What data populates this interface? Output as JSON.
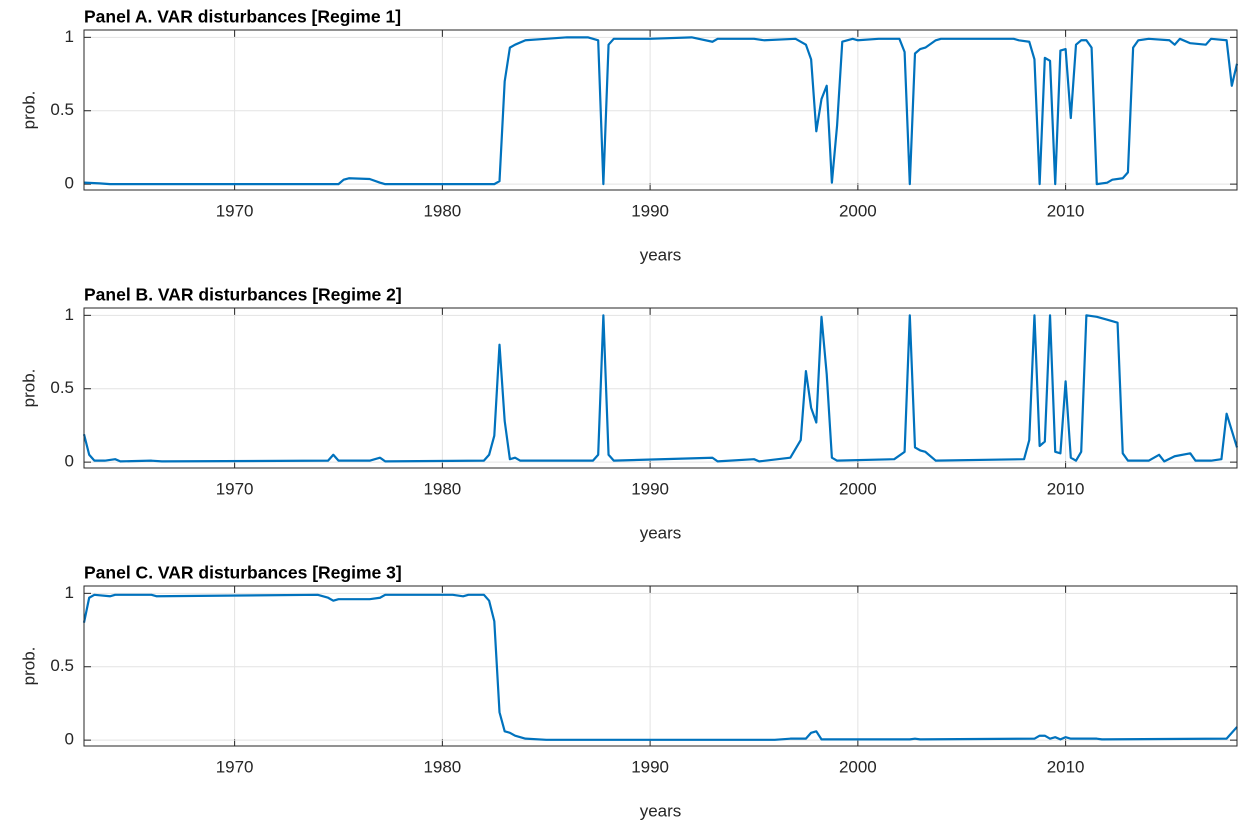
{
  "chart_data": [
    {
      "type": "line",
      "title": "Panel A. VAR disturbances [Regime 1]",
      "xlabel": "years",
      "ylabel": "prob.",
      "xlim": [
        1962.75,
        2018.25
      ],
      "ylim": [
        -0.04,
        1.05
      ],
      "xticks": [
        1970,
        1980,
        1990,
        2000,
        2010
      ],
      "yticks": [
        0,
        0.5,
        1
      ],
      "grid": true,
      "color": "#0072bd",
      "x": [
        1962.75,
        1963.5,
        1964,
        1975,
        1975.25,
        1975.5,
        1976.5,
        1977,
        1977.25,
        1982.5,
        1982.75,
        1983,
        1983.25,
        1983.5,
        1984,
        1985,
        1986,
        1987,
        1987.5,
        1987.75,
        1988,
        1988.25,
        1990,
        1992,
        1993,
        1993.25,
        1995,
        1995.5,
        1997,
        1997.5,
        1997.75,
        1998,
        1998.25,
        1998.5,
        1998.75,
        1999,
        1999.25,
        1999.75,
        2000,
        2001,
        2002,
        2002.25,
        2002.5,
        2002.75,
        2003,
        2003.25,
        2003.75,
        2004,
        2007.5,
        2007.75,
        2008.25,
        2008.5,
        2008.75,
        2009,
        2009.25,
        2009.5,
        2009.75,
        2010,
        2010.25,
        2010.5,
        2010.75,
        2011,
        2011.25,
        2011.5,
        2012,
        2012.25,
        2012.75,
        2013,
        2013.25,
        2013.5,
        2014,
        2015,
        2015.25,
        2015.5,
        2016,
        2016.75,
        2017,
        2017.75,
        2018,
        2018.25
      ],
      "values": [
        0.01,
        0.005,
        0,
        0,
        0.03,
        0.04,
        0.035,
        0.01,
        0,
        0,
        0.02,
        0.7,
        0.93,
        0.95,
        0.98,
        0.99,
        1,
        1,
        0.98,
        0,
        0.95,
        0.99,
        0.99,
        1,
        0.97,
        0.99,
        0.99,
        0.98,
        0.99,
        0.95,
        0.85,
        0.36,
        0.58,
        0.67,
        0.01,
        0.4,
        0.97,
        0.99,
        0.98,
        0.99,
        0.99,
        0.9,
        0,
        0.89,
        0.92,
        0.93,
        0.98,
        0.99,
        0.99,
        0.98,
        0.97,
        0.85,
        0,
        0.86,
        0.84,
        0,
        0.91,
        0.92,
        0.45,
        0.95,
        0.98,
        0.98,
        0.93,
        0,
        0.01,
        0.03,
        0.04,
        0.08,
        0.93,
        0.98,
        0.99,
        0.98,
        0.95,
        0.99,
        0.96,
        0.95,
        0.99,
        0.98,
        0.67,
        0.82
      ]
    },
    {
      "type": "line",
      "title": "Panel B. VAR disturbances [Regime 2]",
      "xlabel": "years",
      "ylabel": "prob.",
      "xlim": [
        1962.75,
        2018.25
      ],
      "ylim": [
        -0.04,
        1.05
      ],
      "xticks": [
        1970,
        1980,
        1990,
        2000,
        2010
      ],
      "yticks": [
        0,
        0.5,
        1
      ],
      "grid": true,
      "color": "#0072bd",
      "x": [
        1962.75,
        1963,
        1963.25,
        1963.75,
        1964.25,
        1964.5,
        1966,
        1966.5,
        1974.5,
        1974.75,
        1975,
        1976.5,
        1977,
        1977.25,
        1982,
        1982.25,
        1982.5,
        1982.75,
        1983,
        1983.25,
        1983.5,
        1983.75,
        1987.25,
        1987.5,
        1987.75,
        1988,
        1988.25,
        1993,
        1993.25,
        1995,
        1995.25,
        1996.75,
        1997.25,
        1997.5,
        1997.75,
        1998,
        1998.25,
        1998.5,
        1998.75,
        1999,
        2001.75,
        2002.25,
        2002.5,
        2002.75,
        2003,
        2003.25,
        2003.75,
        2008,
        2008.25,
        2008.5,
        2008.75,
        2009,
        2009.25,
        2009.5,
        2009.75,
        2010,
        2010.25,
        2010.5,
        2010.75,
        2011,
        2011.5,
        2012,
        2012.5,
        2012.75,
        2013,
        2014,
        2014.5,
        2014.75,
        2015.25,
        2016,
        2016.25,
        2017,
        2017.5,
        2017.75,
        2018.25
      ],
      "values": [
        0.19,
        0.05,
        0.01,
        0.01,
        0.02,
        0.005,
        0.01,
        0.005,
        0.01,
        0.05,
        0.01,
        0.01,
        0.03,
        0.005,
        0.01,
        0.05,
        0.18,
        0.8,
        0.28,
        0.02,
        0.03,
        0.01,
        0.01,
        0.05,
        1,
        0.05,
        0.01,
        0.03,
        0.005,
        0.02,
        0.005,
        0.03,
        0.15,
        0.62,
        0.37,
        0.27,
        0.99,
        0.6,
        0.03,
        0.01,
        0.02,
        0.07,
        1,
        0.1,
        0.08,
        0.07,
        0.01,
        0.02,
        0.15,
        1,
        0.11,
        0.14,
        1,
        0.07,
        0.06,
        0.55,
        0.03,
        0.01,
        0.07,
        1,
        0.99,
        0.97,
        0.95,
        0.06,
        0.01,
        0.01,
        0.05,
        0.005,
        0.04,
        0.06,
        0.01,
        0.01,
        0.02,
        0.33,
        0.1
      ]
    },
    {
      "type": "line",
      "title": "Panel C. VAR disturbances [Regime 3]",
      "xlabel": "years",
      "ylabel": "prob.",
      "xlim": [
        1962.75,
        2018.25
      ],
      "ylim": [
        -0.04,
        1.05
      ],
      "xticks": [
        1970,
        1980,
        1990,
        2000,
        2010
      ],
      "yticks": [
        0,
        0.5,
        1
      ],
      "grid": true,
      "color": "#0072bd",
      "x": [
        1962.75,
        1963,
        1963.25,
        1964,
        1964.25,
        1966,
        1966.25,
        1974,
        1974.5,
        1974.75,
        1975,
        1976.5,
        1977,
        1977.25,
        1980.5,
        1981,
        1981.25,
        1982,
        1982.25,
        1982.5,
        1982.75,
        1983,
        1983.25,
        1983.5,
        1984,
        1985,
        1996,
        1996.75,
        1997.5,
        1997.75,
        1998,
        1998.25,
        2002.5,
        2002.75,
        2003,
        2008.5,
        2008.75,
        2009,
        2009.25,
        2009.5,
        2009.75,
        2010,
        2010.25,
        2011.5,
        2011.75,
        2017.75,
        2018.25
      ],
      "values": [
        0.8,
        0.97,
        0.99,
        0.98,
        0.99,
        0.99,
        0.98,
        0.99,
        0.97,
        0.95,
        0.96,
        0.96,
        0.97,
        0.99,
        0.99,
        0.98,
        0.99,
        0.99,
        0.95,
        0.81,
        0.19,
        0.06,
        0.05,
        0.03,
        0.01,
        0.002,
        0.002,
        0.01,
        0.01,
        0.05,
        0.06,
        0.005,
        0.005,
        0.01,
        0.005,
        0.01,
        0.03,
        0.03,
        0.01,
        0.02,
        0.005,
        0.02,
        0.01,
        0.01,
        0.005,
        0.01,
        0.09
      ]
    }
  ]
}
